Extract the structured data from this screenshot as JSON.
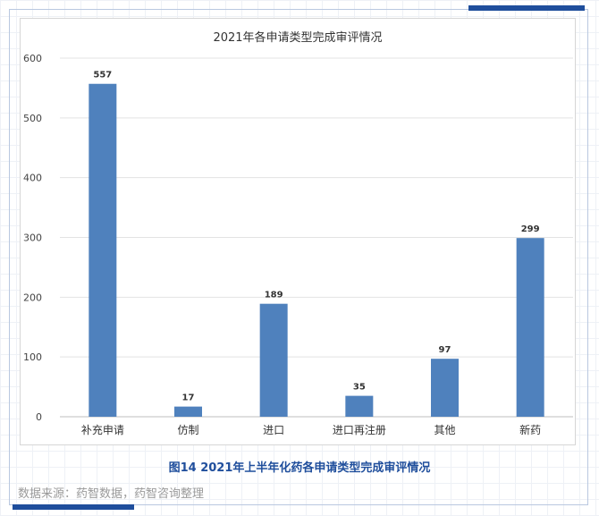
{
  "chart_data": {
    "type": "bar",
    "title": "2021年各申请类型完成审评情况",
    "categories": [
      "补充申请",
      "仿制",
      "进口",
      "进口再注册",
      "其他",
      "新药"
    ],
    "values": [
      557,
      17,
      189,
      35,
      97,
      299
    ],
    "ylim": [
      0,
      600
    ],
    "yticks": [
      "0",
      "100",
      "200",
      "300",
      "400",
      "500",
      "600"
    ],
    "grid": true,
    "bar_color": "#4f81bd"
  },
  "caption": "图14 2021年上半年化药各申请类型完成审评情况",
  "source": "数据来源：药智数据，药智咨询整理",
  "colors": {
    "accent": "#1f4e9c",
    "caption": "#1f4e9c"
  }
}
